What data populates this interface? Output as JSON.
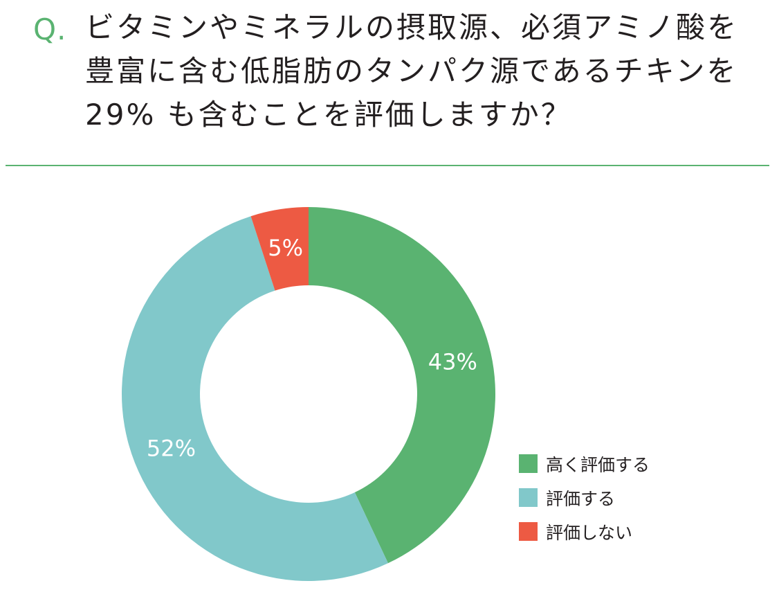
{
  "question": {
    "marker": "Q.",
    "text": "ビタミンやミネラルの摂取源、必須アミノ酸を豊富に含む低脂肪のタンパク源であるチキンを 29% も含むことを評価しますか？"
  },
  "chart_data": {
    "type": "pie",
    "style": "donut",
    "categories": [
      "高く評価する",
      "評価する",
      "評価しない"
    ],
    "values": [
      43,
      52,
      5
    ],
    "value_labels": [
      "43%",
      "52%",
      "5%"
    ],
    "unit": "%",
    "colors": [
      "#5ab371",
      "#81c8ca",
      "#ed5a43"
    ],
    "legend_position": "bottom-right"
  }
}
